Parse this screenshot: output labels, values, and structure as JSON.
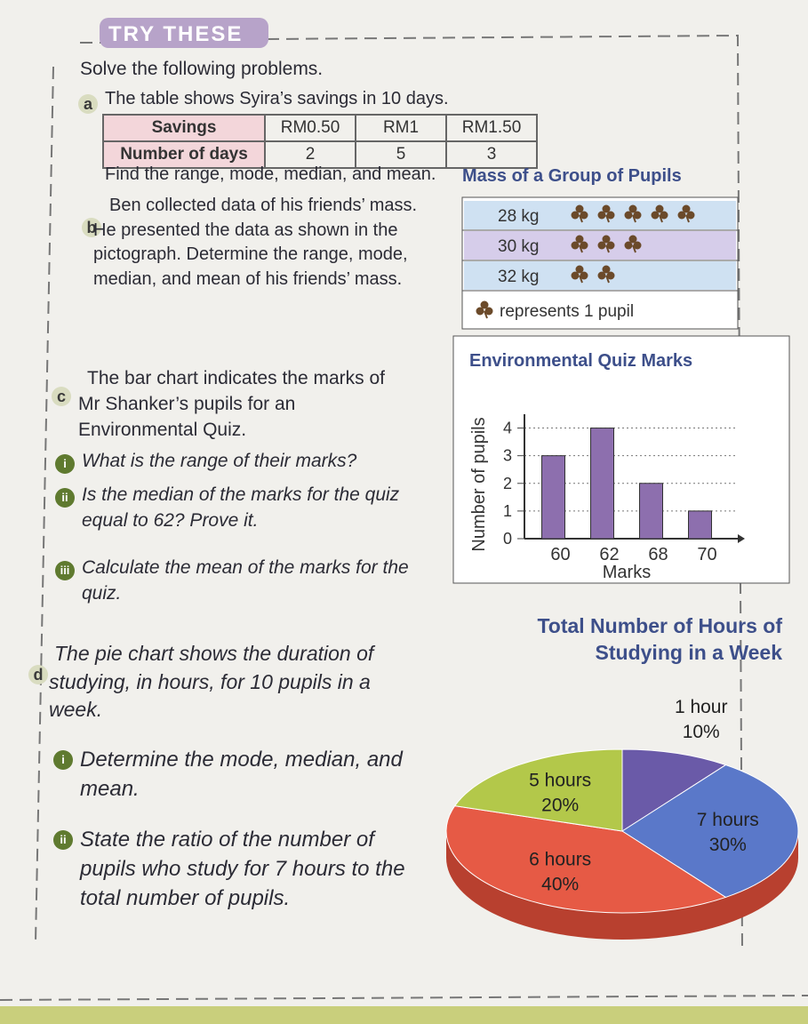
{
  "header": {
    "badge": "TRY THESE"
  },
  "intro": "Solve the following problems.",
  "problem_a": {
    "label": "a",
    "text": "The table shows Syira’s savings in 10 days.",
    "table": {
      "rows": [
        [
          "Savings",
          "RM0.50",
          "RM1",
          "RM1.50"
        ],
        [
          "Number of days",
          "2",
          "5",
          "3"
        ]
      ]
    },
    "question": "Find the range, mode, median, and mean."
  },
  "problem_b": {
    "label": "b",
    "text": "Ben collected data of his friends’ mass. He presented the data as shown in the pictograph. Determine the range, mode, median, and mean of his friends’ mass.",
    "pictograph": {
      "title": "Mass of a Group of Pupils",
      "rows": [
        {
          "label": "28 kg",
          "count": 5
        },
        {
          "label": "30 kg",
          "count": 3
        },
        {
          "label": "32 kg",
          "count": 2
        }
      ],
      "key": "represents 1 pupil"
    }
  },
  "problem_c": {
    "label": "c",
    "text": "The bar chart indicates the marks of Mr Shanker’s pupils for an Environmental Quiz.",
    "items": [
      {
        "label": "i",
        "text": "What is the range of their marks?"
      },
      {
        "label": "ii",
        "text": "Is the median of the marks for the quiz equal to 62? Prove it."
      },
      {
        "label": "iii",
        "text": "Calculate the mean of the marks for the quiz."
      }
    ]
  },
  "problem_d": {
    "label": "d",
    "text": "The pie chart shows the duration of studying, in hours, for 10 pupils in a week.",
    "items": [
      {
        "label": "i",
        "text": "Determine the mode, median, and mean."
      },
      {
        "label": "ii",
        "text": "State the ratio of the number of pupils who study for 7 hours to the total number of pupils."
      }
    ]
  },
  "chart_data": [
    {
      "type": "bar",
      "title": "Environmental Quiz Marks",
      "x_label": "Marks",
      "y_label": "Number of pupils",
      "categories": [
        "60",
        "62",
        "68",
        "70"
      ],
      "values": [
        3,
        4,
        2,
        1
      ],
      "color": "#8d6fae",
      "ylim": [
        0,
        4.5
      ],
      "yticks": [
        0,
        1,
        2,
        3,
        4
      ],
      "grid": true
    },
    {
      "type": "pie",
      "title": "Total Number of Hours of Studying in a Week",
      "categories": [
        "1 hour",
        "7 hours",
        "6 hours",
        "5 hours"
      ],
      "values": [
        10,
        30,
        40,
        20
      ],
      "value_labels": [
        "10%",
        "30%",
        "40%",
        "20%"
      ],
      "colors": [
        "#6a5aa8",
        "#5a78c9",
        "#e65a45",
        "#b3c84a"
      ]
    }
  ]
}
